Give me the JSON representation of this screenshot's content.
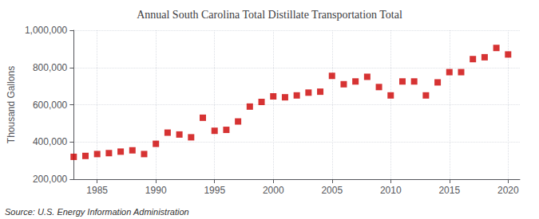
{
  "chart_data": {
    "type": "scatter",
    "title": "Annual South Carolina Total Distillate Transportation Total",
    "ylabel": "Thousand Gallons",
    "annotations": [
      "Source: U.S. Energy Information Administration"
    ],
    "x": [
      1983,
      1984,
      1985,
      1986,
      1987,
      1988,
      1989,
      1990,
      1991,
      1992,
      1993,
      1994,
      1995,
      1996,
      1997,
      1998,
      1999,
      2000,
      2001,
      2002,
      2003,
      2004,
      2005,
      2006,
      2007,
      2008,
      2009,
      2010,
      2011,
      2012,
      2013,
      2014,
      2015,
      2016,
      2017,
      2018,
      2019,
      2020
    ],
    "values": [
      320000,
      325000,
      335000,
      340000,
      348000,
      355000,
      335000,
      390000,
      450000,
      440000,
      425000,
      530000,
      460000,
      465000,
      510000,
      590000,
      615000,
      645000,
      640000,
      650000,
      665000,
      670000,
      755000,
      710000,
      725000,
      750000,
      695000,
      650000,
      725000,
      725000,
      650000,
      720000,
      775000,
      775000,
      845000,
      855000,
      905000,
      870000
    ],
    "color": "#cc0000",
    "marker": "square",
    "xlim": [
      1983,
      2021
    ],
    "ylim": [
      200000,
      1000000
    ],
    "xticks": [
      1985,
      1990,
      1995,
      2000,
      2005,
      2010,
      2015,
      2020
    ],
    "yticks": [
      {
        "value": 200000,
        "label": "200,000"
      },
      {
        "value": 400000,
        "label": "400,000"
      },
      {
        "value": 600000,
        "label": "600,000"
      },
      {
        "value": 800000,
        "label": "800,000"
      },
      {
        "value": 1000000,
        "label": "1,000,000"
      }
    ],
    "grid": true
  }
}
